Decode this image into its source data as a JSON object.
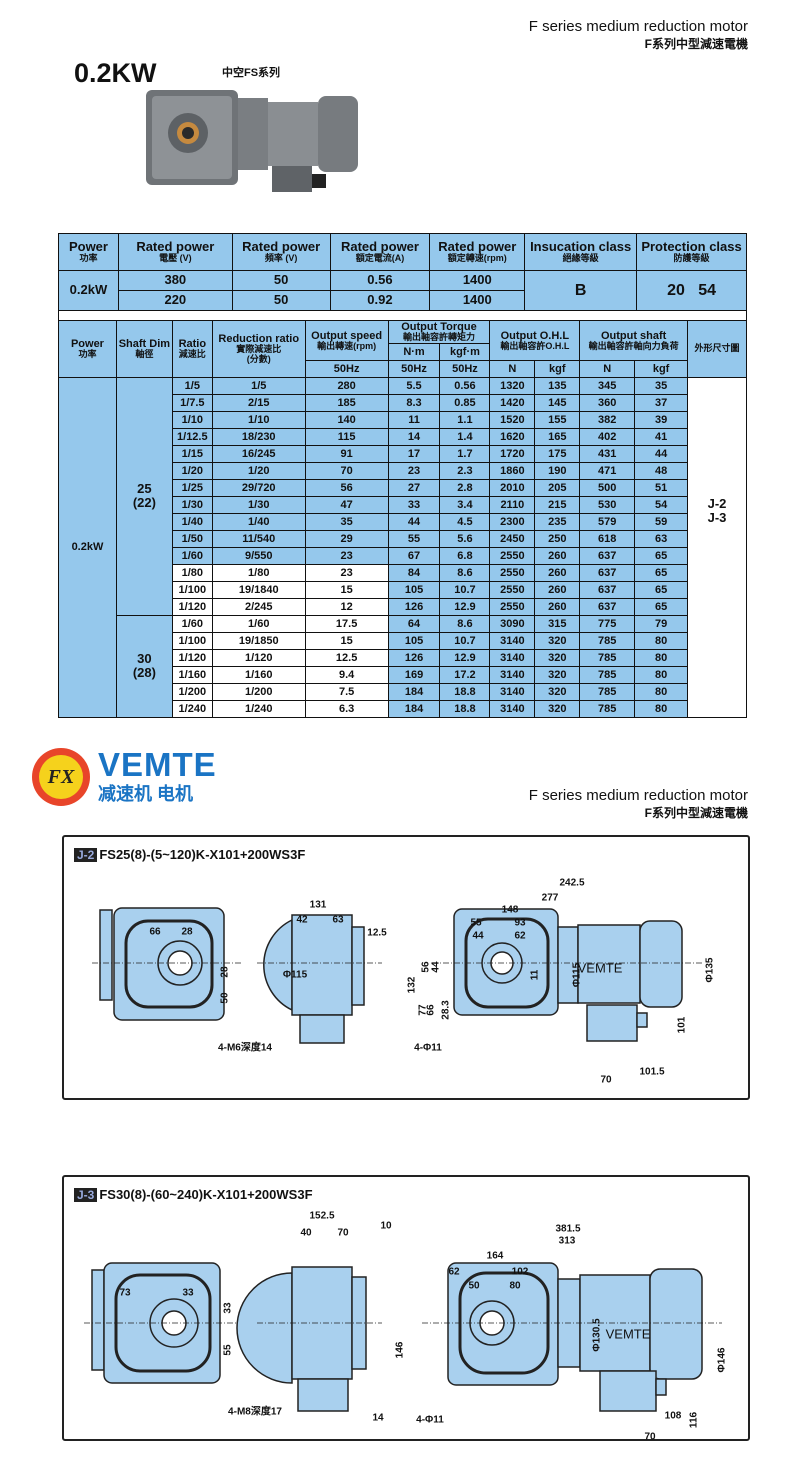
{
  "header": {
    "title_en": "F series medium reduction motor",
    "title_cn": "F系列中型減速電機"
  },
  "product": {
    "power": "0.2KW",
    "series": "中空FS系列"
  },
  "colors": {
    "table_blue": "#95c8ec",
    "drawing_blue": "#a9d0ee",
    "logo_orange": "#e8452a",
    "logo_yellow": "#f5d21c",
    "logo_blue": "#1a74c4"
  },
  "spec_table": {
    "headers": [
      {
        "en": "Power",
        "cn": "功率"
      },
      {
        "en": "Rated power",
        "cn": "電壓 (V)"
      },
      {
        "en": "Rated power",
        "cn": "頻率 (V)"
      },
      {
        "en": "Rated power",
        "cn": "額定電流(A)"
      },
      {
        "en": "Rated power",
        "cn": "額定轉速(rpm)"
      },
      {
        "en": "Insucation class",
        "cn": "絕緣等級"
      },
      {
        "en": "Protection class",
        "cn": "防護等級"
      }
    ],
    "power": "0.2kW",
    "rows": [
      [
        "380",
        "50",
        "0.56",
        "1400"
      ],
      [
        "220",
        "50",
        "0.92",
        "1400"
      ]
    ],
    "insulation": "B",
    "protection": "20   54"
  },
  "perf_table": {
    "headers": {
      "power": "Power",
      "power_cn": "功率",
      "shaft": "Shaft Dim",
      "shaft_cn": "軸徑",
      "ratio": "Ratio",
      "ratio_cn": "減速比",
      "reduction": "Reduction ratio",
      "reduction_cn": "實際減速比",
      "reduction_cn2": "(分數)",
      "speed": "Output speed",
      "speed_cn": "輸出轉速(rpm)",
      "torque": "Output Torque",
      "torque_cn": "輸出軸容許轉矩力",
      "torque_nm": "N·m",
      "torque_kgf": "kgf·m",
      "ohl": "Output O.H.L",
      "ohl_cn": "輸出軸容許O.H.L",
      "shaft_out": "Output shaft",
      "shaft_out_cn": "輸出軸容許軸向力負荷",
      "dims_cn": "外形尺寸圖",
      "hz": "50Hz",
      "n": "N",
      "kgf": "kgf"
    },
    "power": "0.2kW",
    "drawings": [
      "J-2",
      "J-3"
    ],
    "groups": [
      {
        "shaft": "25",
        "shaft_sub": "(22)",
        "rows": [
          [
            "1/5",
            "1/5",
            "280",
            "5.5",
            "0.56",
            "1320",
            "135",
            "345",
            "35"
          ],
          [
            "1/7.5",
            "2/15",
            "185",
            "8.3",
            "0.85",
            "1420",
            "145",
            "360",
            "37"
          ],
          [
            "1/10",
            "1/10",
            "140",
            "11",
            "1.1",
            "1520",
            "155",
            "382",
            "39"
          ],
          [
            "1/12.5",
            "18/230",
            "115",
            "14",
            "1.4",
            "1620",
            "165",
            "402",
            "41"
          ],
          [
            "1/15",
            "16/245",
            "91",
            "17",
            "1.7",
            "1720",
            "175",
            "431",
            "44"
          ],
          [
            "1/20",
            "1/20",
            "70",
            "23",
            "2.3",
            "1860",
            "190",
            "471",
            "48"
          ],
          [
            "1/25",
            "29/720",
            "56",
            "27",
            "2.8",
            "2010",
            "205",
            "500",
            "51"
          ],
          [
            "1/30",
            "1/30",
            "47",
            "33",
            "3.4",
            "2110",
            "215",
            "530",
            "54"
          ],
          [
            "1/40",
            "1/40",
            "35",
            "44",
            "4.5",
            "2300",
            "235",
            "579",
            "59"
          ],
          [
            "1/50",
            "11/540",
            "29",
            "55",
            "5.6",
            "2450",
            "250",
            "618",
            "63"
          ],
          [
            "1/60",
            "9/550",
            "23",
            "67",
            "6.8",
            "2550",
            "260",
            "637",
            "65"
          ],
          [
            "1/80",
            "1/80",
            "23",
            "84",
            "8.6",
            "2550",
            "260",
            "637",
            "65"
          ],
          [
            "1/100",
            "19/1840",
            "15",
            "105",
            "10.7",
            "2550",
            "260",
            "637",
            "65"
          ],
          [
            "1/120",
            "2/245",
            "12",
            "126",
            "12.9",
            "2550",
            "260",
            "637",
            "65"
          ]
        ]
      },
      {
        "shaft": "30",
        "shaft_sub": "(28)",
        "rows": [
          [
            "1/60",
            "1/60",
            "17.5",
            "64",
            "8.6",
            "3090",
            "315",
            "775",
            "79"
          ],
          [
            "1/100",
            "19/1850",
            "15",
            "105",
            "10.7",
            "3140",
            "320",
            "785",
            "80"
          ],
          [
            "1/120",
            "1/120",
            "12.5",
            "126",
            "12.9",
            "3140",
            "320",
            "785",
            "80"
          ],
          [
            "1/160",
            "1/160",
            "9.4",
            "169",
            "17.2",
            "3140",
            "320",
            "785",
            "80"
          ],
          [
            "1/200",
            "1/200",
            "7.5",
            "184",
            "18.8",
            "3140",
            "320",
            "785",
            "80"
          ],
          [
            "1/240",
            "1/240",
            "6.3",
            "184",
            "18.8",
            "3140",
            "320",
            "785",
            "80"
          ]
        ]
      }
    ]
  },
  "logo": {
    "text": "VEMTE",
    "subtitle": "减速机 电机",
    "mark": "FX"
  },
  "footer_header": {
    "title_en": "F series medium reduction motor",
    "title_cn": "F系列中型減速電機"
  },
  "drawing_j2": {
    "tag": "J-2",
    "model": "FS25(8)-(5~120)K-X101+200WS3F",
    "dims": {
      "d131": "131",
      "d42": "42",
      "d63": "63",
      "d12_5": "12.5",
      "d66": "66",
      "d28": "28",
      "d28v": "28",
      "d50": "50",
      "tap": "4-M6深度14",
      "phi115s": "Φ115",
      "d242_5": "242.5",
      "d277": "277",
      "d148": "148",
      "d55": "55",
      "d93": "93",
      "d44": "44",
      "d62": "62",
      "d132": "132",
      "d56": "56",
      "d44v": "44",
      "d77": "77",
      "d66v": "66",
      "d28_3": "28.3",
      "d11": "11",
      "phi115": "Φ115",
      "phi135": "Φ135",
      "d101": "101",
      "holes": "4-Φ11",
      "d70": "70",
      "d101_5": "101.5",
      "brand": "VEMTE"
    }
  },
  "drawing_j3": {
    "tag": "J-3",
    "model": "FS30(8)-(60~240)K-X101+200WS3F",
    "dims": {
      "d152_5": "152.5",
      "d10": "10",
      "d40": "40",
      "d70a": "70",
      "d73": "73",
      "d33": "33",
      "d33v": "33",
      "d55v": "55",
      "tap": "4-M8深度17",
      "d14": "14",
      "d381_5": "381.5",
      "d313": "313",
      "d164": "164",
      "d62": "62",
      "d102": "102",
      "d50": "50",
      "d80": "80",
      "d146": "146",
      "phi130_5": "Φ130.5",
      "phi146": "Φ146",
      "d116": "116",
      "d108": "108",
      "d70": "70",
      "holes": "4-Φ11",
      "brand": "VEMTE"
    }
  }
}
